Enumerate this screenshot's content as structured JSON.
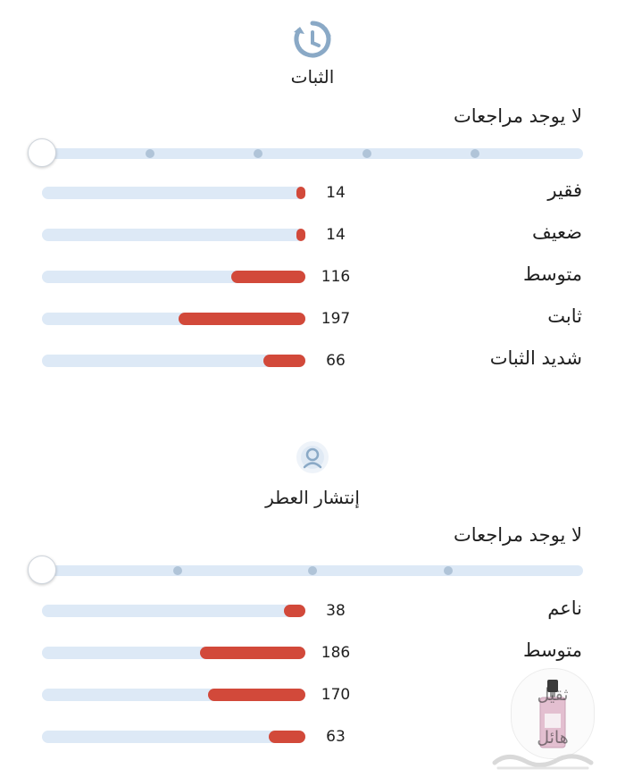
{
  "sections": [
    {
      "icon": "clock-refresh-icon",
      "title": "الثبات",
      "status": "لا يوجد مراجعات",
      "slider": {
        "stops": 5,
        "value_index": 0
      },
      "rows": [
        {
          "label": "فقير",
          "count": "14",
          "fraction": 0.03
        },
        {
          "label": "ضعيف",
          "count": "14",
          "fraction": 0.03
        },
        {
          "label": "متوسط",
          "count": "116",
          "fraction": 0.28
        },
        {
          "label": "ثابت",
          "count": "197",
          "fraction": 0.48
        },
        {
          "label": "شديد الثبات",
          "count": "66",
          "fraction": 0.16
        }
      ]
    },
    {
      "icon": "person-aura-icon",
      "title": "إنتشار العطر",
      "status": "لا يوجد مراجعات",
      "slider": {
        "stops": 4,
        "value_index": 0
      },
      "rows": [
        {
          "label": "ناعم",
          "count": "38",
          "fraction": 0.08
        },
        {
          "label": "متوسط",
          "count": "186",
          "fraction": 0.4
        },
        {
          "label": "",
          "count": "170",
          "fraction": 0.37
        },
        {
          "label": "",
          "count": "63",
          "fraction": 0.14
        }
      ]
    }
  ],
  "watermark": {
    "line1": "ثقيل",
    "line2": "هائل",
    "logo": "haraj-logo"
  },
  "colors": {
    "accent": "#d2493a",
    "track": "#dde9f6",
    "stop": "#b0c4d8",
    "icon": "#8aa9c6"
  }
}
